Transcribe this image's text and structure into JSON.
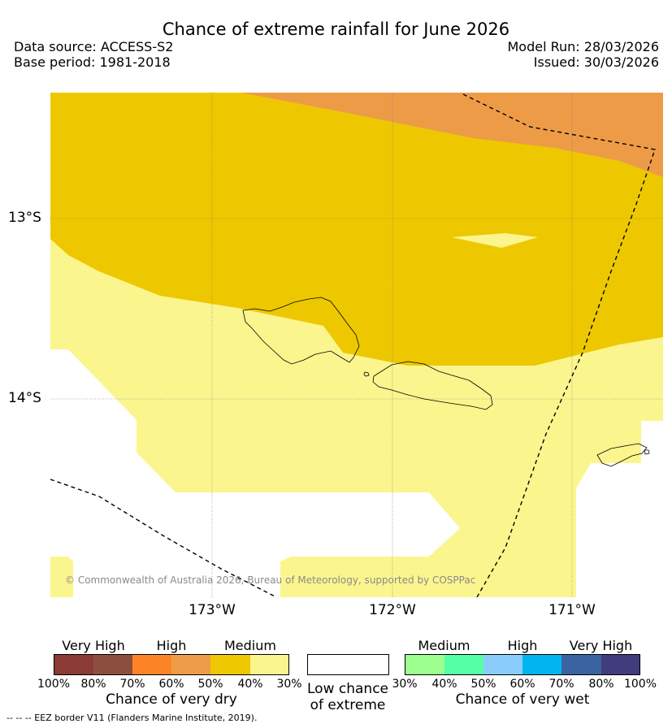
{
  "header": {
    "title": "Chance of extreme rainfall for June 2026",
    "data_source": "Data source: ACCESS-S2",
    "base_period": "Base period: 1981-2018",
    "model_run": "Model Run: 28/03/2026",
    "issued": "Issued: 30/03/2026"
  },
  "map": {
    "latitude_labels": [
      "13°S",
      "14°S"
    ],
    "longitude_labels": [
      "173°W",
      "172°W",
      "171°W"
    ],
    "copyright": "© Commonwealth of Australia 2026, Bureau of Meteorology, supported by COSPPac",
    "colors": {
      "medium_dry": "#edc800",
      "high_dry": "#ee9b48",
      "low_dry": "#fbf58e",
      "low_chance": "#ffffff",
      "coast": "#000000"
    }
  },
  "legend": {
    "dry": {
      "categories": [
        "Very High",
        "High",
        "Medium"
      ],
      "ticks": [
        "100%",
        "80%",
        "70%",
        "60%",
        "50%",
        "40%",
        "30%"
      ],
      "colors": [
        "#8b3a34",
        "#8c4f3f",
        "#fd8426",
        "#ee9b48",
        "#edc800",
        "#fbf58e"
      ],
      "label": "Chance of very dry"
    },
    "neutral": {
      "label_line1": "Low chance",
      "label_line2": "of extreme",
      "color": "#ffffff"
    },
    "wet": {
      "categories": [
        "Medium",
        "High",
        "Very High"
      ],
      "ticks": [
        "30%",
        "40%",
        "50%",
        "60%",
        "70%",
        "80%",
        "100%"
      ],
      "colors": [
        "#9cff90",
        "#55ffa6",
        "#8bcdfa",
        "#00b4ef",
        "#3a63a1",
        "#413c7c"
      ],
      "label": "Chance of very wet"
    }
  },
  "footer": {
    "eez_note": "--  --  -- EEZ border V11 (Flanders Marine Institute, 2019)."
  }
}
